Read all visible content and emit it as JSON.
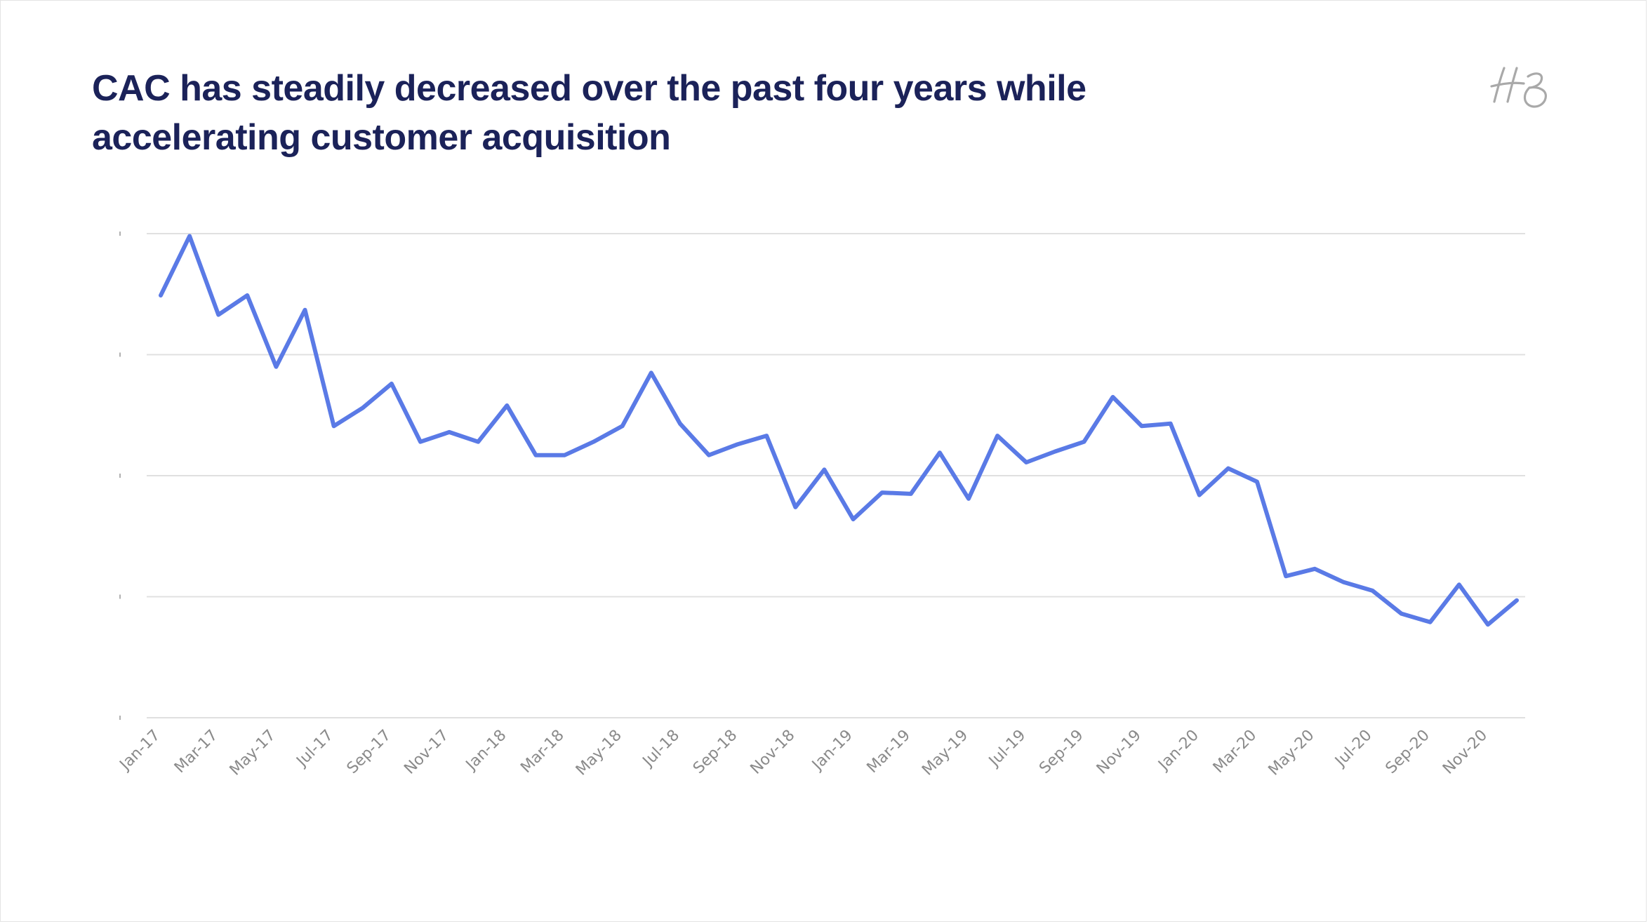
{
  "title": "CAC has steadily decreased over the past four years while accelerating customer acquisition",
  "logo": {
    "icon": "hb-monogram-logo",
    "color": "#a9a9a9"
  },
  "colors": {
    "title": "#1b2259",
    "line": "#5a7ae6",
    "grid": "#e0e0e0",
    "tick_label": "#8a8a8a"
  },
  "chart_data": {
    "type": "line",
    "title": "CAC has steadily decreased over the past four years while accelerating customer acquisition",
    "xlabel": "",
    "ylabel": "",
    "ylim": [
      0,
      4
    ],
    "y_ticks": [
      0,
      1,
      2,
      3,
      4
    ],
    "y_tick_labels_shown": false,
    "grid": true,
    "legend": "none",
    "x": [
      "Jan-17",
      "Feb-17",
      "Mar-17",
      "Apr-17",
      "May-17",
      "Jun-17",
      "Jul-17",
      "Aug-17",
      "Sep-17",
      "Oct-17",
      "Nov-17",
      "Dec-17",
      "Jan-18",
      "Feb-18",
      "Mar-18",
      "Apr-18",
      "May-18",
      "Jun-18",
      "Jul-18",
      "Aug-18",
      "Sep-18",
      "Oct-18",
      "Nov-18",
      "Dec-18",
      "Jan-19",
      "Feb-19",
      "Mar-19",
      "Apr-19",
      "May-19",
      "Jun-19",
      "Jul-19",
      "Aug-19",
      "Sep-19",
      "Oct-19",
      "Nov-19",
      "Dec-19",
      "Jan-20",
      "Feb-20",
      "Mar-20",
      "Apr-20",
      "May-20",
      "Jun-20",
      "Jul-20",
      "Aug-20",
      "Sep-20",
      "Oct-20",
      "Nov-20",
      "Dec-20"
    ],
    "x_tick_labels": [
      "Jan-17",
      "Mar-17",
      "May-17",
      "Jul-17",
      "Sep-17",
      "Nov-17",
      "Jan-18",
      "Mar-18",
      "May-18",
      "Jul-18",
      "Sep-18",
      "Nov-18",
      "Jan-19",
      "Mar-19",
      "May-19",
      "Jul-19",
      "Sep-19",
      "Nov-19",
      "Jan-20",
      "Mar-20",
      "May-20",
      "Jul-20",
      "Sep-20",
      "Nov-20"
    ],
    "series": [
      {
        "color": "#5a7ae6",
        "values": [
          3.49,
          3.98,
          3.33,
          3.49,
          2.9,
          3.37,
          2.41,
          2.56,
          2.76,
          2.28,
          2.36,
          2.28,
          2.58,
          2.17,
          2.17,
          2.28,
          2.41,
          2.85,
          2.43,
          2.17,
          2.26,
          2.33,
          1.74,
          2.05,
          1.64,
          1.86,
          1.85,
          2.19,
          1.81,
          2.33,
          2.11,
          2.2,
          2.28,
          2.65,
          2.41,
          2.43,
          1.84,
          2.06,
          1.95,
          1.17,
          1.23,
          1.12,
          1.05,
          0.86,
          0.79,
          1.1,
          0.77,
          0.97
        ]
      }
    ]
  }
}
